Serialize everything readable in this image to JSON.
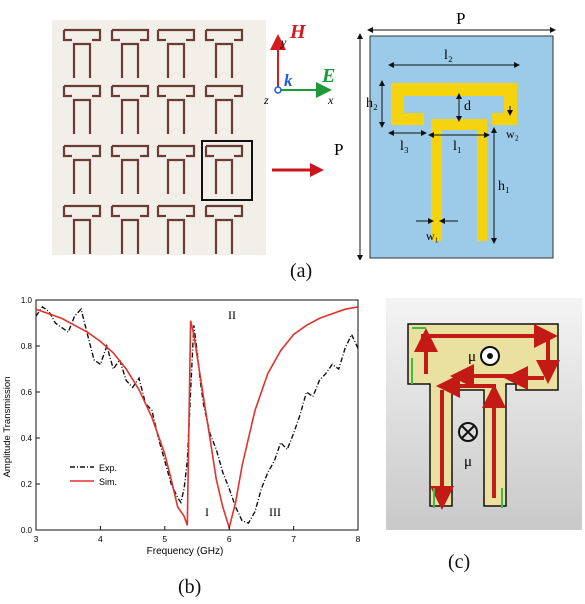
{
  "photo": {
    "tile_shape": "T"
  },
  "axes_icon": {
    "h": "H",
    "e": "E",
    "k": "k",
    "x": "x",
    "y": "y",
    "z": "z"
  },
  "unit_cell": {
    "P": "P",
    "P_side": "P",
    "l2": "l₂",
    "h2": "h₂",
    "d": "d",
    "w2": "w₂",
    "l3": "l₃",
    "l1": "l₁",
    "h1": "h₁",
    "w1": "w₁"
  },
  "colors": {
    "background_cell": "#9bcbe8",
    "metal": "#f5d40f",
    "sim": "#e0332e",
    "exp": "#111111",
    "arrow": "#c8141c"
  },
  "labels": {
    "a": "(a)",
    "b": "(b)",
    "c": "(c)"
  },
  "current_plot": {
    "mu_top": "μ",
    "mu_bottom": "μ"
  },
  "chart_data": {
    "type": "line",
    "xlabel": "Frequency (GHz)",
    "ylabel": "Amplitude Transmission",
    "xlim": [
      3,
      8
    ],
    "ylim": [
      0,
      1.0
    ],
    "x_ticks": [
      "3",
      "4",
      "5",
      "6",
      "7",
      "8"
    ],
    "y_ticks": [
      "0.0",
      "0.2",
      "0.4",
      "0.6",
      "0.8",
      "1.0"
    ],
    "annotations": [
      "I",
      "II",
      "III"
    ],
    "legend": {
      "placement": "lower-left",
      "entries": [
        "Exp.",
        "Sim."
      ]
    },
    "series": [
      {
        "name": "Exp.",
        "style": "dash-dot",
        "x": [
          3.0,
          3.1,
          3.2,
          3.3,
          3.4,
          3.5,
          3.6,
          3.7,
          3.8,
          3.9,
          4.0,
          4.1,
          4.2,
          4.3,
          4.4,
          4.5,
          4.6,
          4.7,
          4.8,
          4.9,
          5.0,
          5.1,
          5.2,
          5.25,
          5.3,
          5.35,
          5.4,
          5.45,
          5.5,
          5.55,
          5.6,
          5.7,
          5.8,
          5.9,
          6.0,
          6.1,
          6.2,
          6.3,
          6.4,
          6.5,
          6.6,
          6.7,
          6.8,
          6.9,
          7.0,
          7.1,
          7.2,
          7.3,
          7.4,
          7.5,
          7.6,
          7.7,
          7.8,
          7.9,
          8.0
        ],
        "y": [
          0.93,
          0.97,
          0.95,
          0.9,
          0.88,
          0.86,
          0.93,
          0.96,
          0.85,
          0.74,
          0.72,
          0.8,
          0.7,
          0.74,
          0.65,
          0.62,
          0.66,
          0.55,
          0.52,
          0.4,
          0.3,
          0.2,
          0.14,
          0.12,
          0.18,
          0.3,
          0.6,
          0.89,
          0.78,
          0.65,
          0.55,
          0.42,
          0.35,
          0.25,
          0.18,
          0.1,
          0.04,
          0.03,
          0.08,
          0.18,
          0.25,
          0.3,
          0.38,
          0.35,
          0.42,
          0.5,
          0.6,
          0.58,
          0.65,
          0.68,
          0.72,
          0.7,
          0.79,
          0.85,
          0.79
        ]
      },
      {
        "name": "Sim.",
        "style": "solid",
        "x": [
          3.0,
          3.2,
          3.4,
          3.6,
          3.8,
          4.0,
          4.2,
          4.4,
          4.6,
          4.8,
          5.0,
          5.1,
          5.2,
          5.3,
          5.35,
          5.4,
          5.45,
          5.5,
          5.6,
          5.7,
          5.8,
          5.9,
          6.0,
          6.1,
          6.2,
          6.4,
          6.6,
          6.8,
          7.0,
          7.2,
          7.4,
          7.6,
          7.8,
          8.0
        ],
        "y": [
          0.96,
          0.94,
          0.92,
          0.89,
          0.86,
          0.82,
          0.77,
          0.7,
          0.61,
          0.49,
          0.33,
          0.22,
          0.1,
          0.06,
          0.02,
          0.91,
          0.85,
          0.76,
          0.58,
          0.4,
          0.22,
          0.1,
          0.01,
          0.12,
          0.28,
          0.52,
          0.68,
          0.78,
          0.85,
          0.89,
          0.92,
          0.94,
          0.96,
          0.97
        ]
      }
    ]
  }
}
